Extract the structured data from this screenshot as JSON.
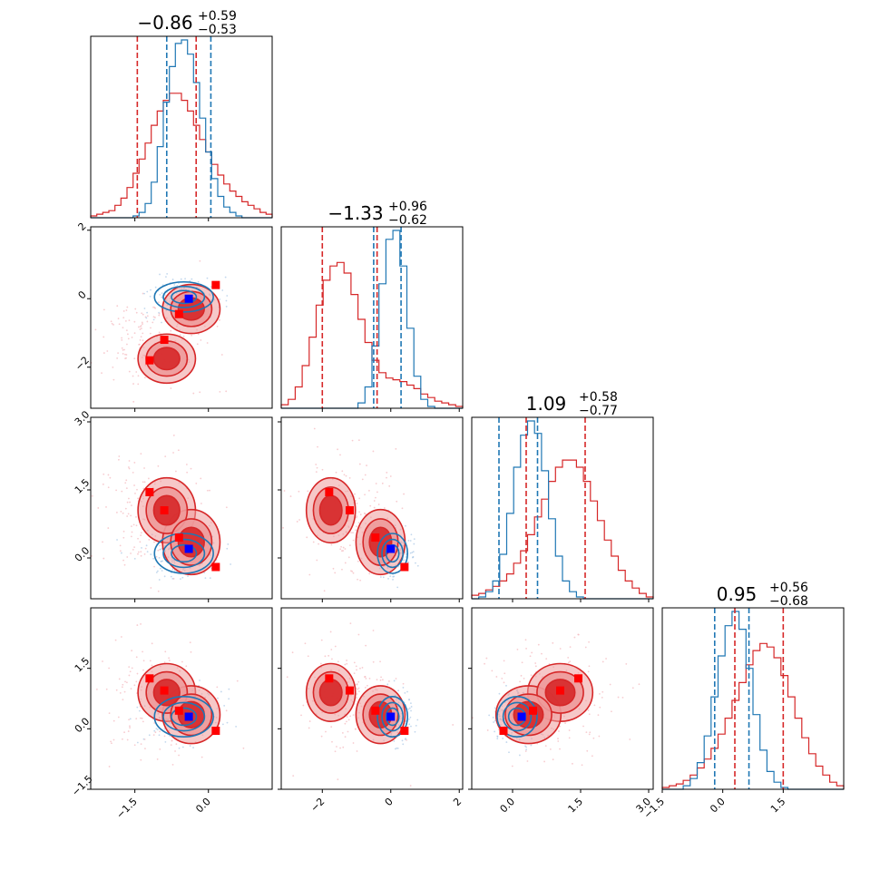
{
  "colors": {
    "series_a": "#d62728",
    "series_a_fill_inner": "#d62728",
    "series_a_fill_outer": "#ee9a9a",
    "series_a_scatter": "#f4b6bc",
    "series_b": "#1f77b4",
    "series_b_scatter": "#a9c7e6",
    "marker_a": "#ff0000",
    "marker_b": "#0000ff"
  },
  "chart_data": {
    "type": "corner",
    "n_params": 4,
    "titles": [
      {
        "value": "−0.86",
        "plus": "+0.59",
        "minus": "−0.53"
      },
      {
        "value": "−1.33",
        "plus": "+0.96",
        "minus": "−0.62"
      },
      {
        "value": "1.09",
        "plus": "+0.58",
        "minus": "−0.77"
      },
      {
        "value": "0.95",
        "plus": "+0.56",
        "minus": "−0.68"
      }
    ],
    "axes": [
      {
        "range": [
          -2.4,
          1.3
        ],
        "ticks": [
          -1.5,
          0.0
        ],
        "tick_labels": [
          "−1.5",
          "0.0"
        ]
      },
      {
        "range": [
          -3.2,
          2.1
        ],
        "ticks": [
          -2,
          0,
          2
        ],
        "tick_labels": [
          "−2",
          "0",
          "2"
        ]
      },
      {
        "range": [
          -0.9,
          3.1
        ],
        "ticks": [
          0.0,
          1.5,
          3.0
        ],
        "tick_labels": [
          "0.0",
          "1.5",
          "3.0"
        ]
      },
      {
        "range": [
          -1.5,
          3.0
        ],
        "ticks": [
          -1.5,
          0.0,
          1.5
        ],
        "tick_labels": [
          "−1.5",
          "0.0",
          "1.5"
        ]
      }
    ],
    "series": [
      {
        "name": "",
        "color_key": "series_a",
        "means": [
          -1.15,
          -1.25,
          0.95,
          0.75
        ],
        "sigmas": [
          0.45,
          0.55,
          0.55,
          0.55
        ],
        "quantiles": [
          [
            -1.45,
            -0.25
          ],
          [
            -2.0,
            -0.4
          ],
          [
            0.3,
            1.6
          ],
          [
            0.3,
            1.5
          ]
        ],
        "modes": [
          {
            "mean": [
              -0.85,
              -1.75,
              1.05,
              0.9
            ],
            "weight": 0.55
          },
          {
            "mean": [
              -0.35,
              -0.3,
              0.35,
              0.35
            ],
            "weight": 0.45
          }
        ]
      },
      {
        "name": "",
        "color_key": "series_b",
        "means": [
          -0.5,
          0.05,
          0.1,
          0.3
        ],
        "sigmas": [
          0.3,
          0.22,
          0.22,
          0.25
        ],
        "quantiles": [
          [
            -0.85,
            0.05
          ],
          [
            -0.5,
            0.3
          ],
          [
            -0.3,
            0.55
          ],
          [
            -0.2,
            0.65
          ]
        ]
      }
    ],
    "markers_a": [
      [
        -1.2,
        -1.8,
        1.45,
        1.25
      ],
      [
        -0.9,
        -1.2,
        1.05,
        0.95
      ],
      [
        -0.6,
        -0.45,
        0.45,
        0.45
      ],
      [
        0.15,
        0.4,
        -0.2,
        -0.05
      ]
    ],
    "marker_b": [
      -0.4,
      0.0,
      0.2,
      0.3
    ],
    "hist_a": [
      [
        0.01,
        0.02,
        0.03,
        0.04,
        0.07,
        0.11,
        0.17,
        0.25,
        0.33,
        0.42,
        0.52,
        0.6,
        0.66,
        0.7,
        0.7,
        0.66,
        0.6,
        0.52,
        0.44,
        0.37,
        0.3,
        0.24,
        0.19,
        0.15,
        0.12,
        0.09,
        0.07,
        0.05,
        0.03,
        0.02
      ],
      [
        0.02,
        0.05,
        0.12,
        0.24,
        0.4,
        0.58,
        0.72,
        0.8,
        0.82,
        0.76,
        0.64,
        0.5,
        0.37,
        0.27,
        0.2,
        0.17,
        0.16,
        0.15,
        0.13,
        0.11,
        0.08,
        0.06,
        0.04,
        0.03,
        0.02,
        0.01
      ],
      [
        0.02,
        0.03,
        0.05,
        0.07,
        0.1,
        0.14,
        0.2,
        0.27,
        0.36,
        0.46,
        0.56,
        0.66,
        0.74,
        0.78,
        0.78,
        0.74,
        0.66,
        0.55,
        0.44,
        0.33,
        0.24,
        0.16,
        0.1,
        0.06,
        0.03,
        0.01
      ],
      [
        0.01,
        0.02,
        0.03,
        0.05,
        0.08,
        0.12,
        0.17,
        0.23,
        0.31,
        0.4,
        0.5,
        0.6,
        0.7,
        0.78,
        0.82,
        0.8,
        0.74,
        0.64,
        0.52,
        0.4,
        0.29,
        0.2,
        0.13,
        0.08,
        0.04,
        0.02
      ]
    ],
    "hist_b": [
      [
        0,
        0,
        0,
        0,
        0,
        0,
        0,
        0.01,
        0.03,
        0.08,
        0.2,
        0.4,
        0.65,
        0.85,
        0.98,
        1.0,
        0.92,
        0.76,
        0.56,
        0.37,
        0.22,
        0.12,
        0.06,
        0.03,
        0.01,
        0,
        0,
        0,
        0,
        0
      ],
      [
        0,
        0,
        0,
        0,
        0,
        0,
        0,
        0,
        0,
        0,
        0,
        0.03,
        0.12,
        0.35,
        0.7,
        0.95,
        1.0,
        0.8,
        0.45,
        0.18,
        0.05,
        0.01,
        0,
        0,
        0,
        0
      ],
      [
        0,
        0.01,
        0.04,
        0.1,
        0.25,
        0.48,
        0.74,
        0.92,
        1.0,
        0.93,
        0.72,
        0.45,
        0.24,
        0.1,
        0.04,
        0.01,
        0,
        0,
        0,
        0,
        0,
        0,
        0,
        0,
        0,
        0
      ],
      [
        0,
        0,
        0,
        0.02,
        0.06,
        0.15,
        0.3,
        0.52,
        0.75,
        0.92,
        1.0,
        0.9,
        0.68,
        0.42,
        0.22,
        0.1,
        0.04,
        0.01,
        0,
        0,
        0,
        0,
        0,
        0,
        0,
        0
      ]
    ]
  }
}
